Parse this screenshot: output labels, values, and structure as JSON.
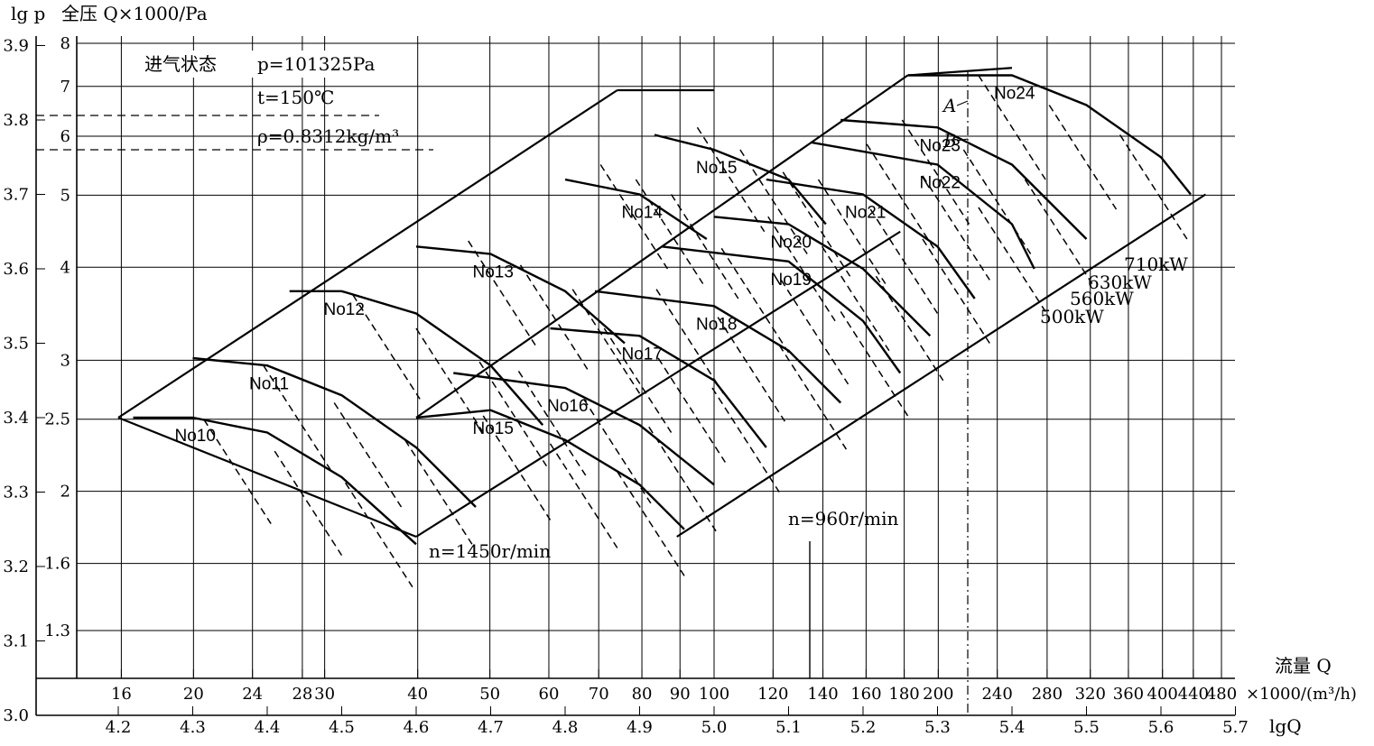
{
  "chart_data": {
    "type": "line",
    "title": "",
    "ylabel_log": "lg p",
    "ylabel": "全压 Q×1000/Pa",
    "xlabel": "流量 Q",
    "xunit": "×1000/(m³/h)",
    "xlabel_log": "lgQ",
    "lgQ_ticks": [
      "4.2",
      "4.3",
      "4.4",
      "4.5",
      "4.6",
      "4.7",
      "4.8",
      "4.9",
      "5.0",
      "5.1",
      "5.2",
      "5.3",
      "5.4",
      "5.5",
      "5.6",
      "5.7"
    ],
    "lgp_ticks": [
      "3.0",
      "3.1",
      "3.2",
      "3.3",
      "3.4",
      "3.5",
      "3.6",
      "3.7",
      "3.8",
      "3.9"
    ],
    "pressure_ticks": [
      "1.3",
      "1.6",
      "2",
      "2.5",
      "3",
      "4",
      "5",
      "6",
      "7",
      "8"
    ],
    "flow_ticks": [
      "16",
      "20",
      "24",
      "28",
      "30",
      "40",
      "50",
      "60",
      "70",
      "80",
      "90",
      "100",
      "120",
      "140",
      "160",
      "180",
      "200",
      "240",
      "280",
      "320",
      "360",
      "400",
      "440",
      "480"
    ],
    "inlet_conditions": {
      "heading": "进气状态",
      "pressure": "p=101325Pa",
      "temperature": "t=150℃",
      "density": "ρ=0.8312kg/m³"
    },
    "xlim_lgQ": [
      4.2,
      5.7
    ],
    "ylim_lgp": [
      3.0,
      3.9
    ],
    "grid": true,
    "speed_labels": [
      "n=1450r/min",
      "n=960r/min"
    ],
    "power_labels": [
      "710kW",
      "630kW",
      "560kW",
      "500kW"
    ],
    "point_labels": [
      "A",
      "B"
    ],
    "series": [
      {
        "name": "No10",
        "points": [
          [
            4.22,
            3.4
          ],
          [
            4.3,
            3.4
          ],
          [
            4.4,
            3.38
          ],
          [
            4.5,
            3.32
          ],
          [
            4.6,
            3.23
          ]
        ]
      },
      {
        "name": "No11",
        "points": [
          [
            4.3,
            3.48
          ],
          [
            4.4,
            3.47
          ],
          [
            4.5,
            3.43
          ],
          [
            4.6,
            3.36
          ],
          [
            4.68,
            3.28
          ]
        ]
      },
      {
        "name": "No12",
        "points": [
          [
            4.43,
            3.57
          ],
          [
            4.5,
            3.57
          ],
          [
            4.6,
            3.54
          ],
          [
            4.7,
            3.47
          ],
          [
            4.77,
            3.39
          ]
        ]
      },
      {
        "name": "No13",
        "points": [
          [
            4.6,
            3.63
          ],
          [
            4.7,
            3.62
          ],
          [
            4.8,
            3.57
          ],
          [
            4.88,
            3.5
          ]
        ]
      },
      {
        "name": "No14",
        "points": [
          [
            4.8,
            3.72
          ],
          [
            4.9,
            3.7
          ],
          [
            4.99,
            3.64
          ]
        ]
      },
      {
        "name": "No15",
        "points": [
          [
            4.92,
            3.78
          ],
          [
            5.0,
            3.76
          ],
          [
            5.1,
            3.72
          ],
          [
            5.15,
            3.66
          ]
        ]
      },
      {
        "name": "No15",
        "points": [
          [
            4.6,
            3.4
          ],
          [
            4.7,
            3.41
          ],
          [
            4.8,
            3.37
          ],
          [
            4.9,
            3.31
          ],
          [
            4.96,
            3.25
          ]
        ]
      },
      {
        "name": "No16",
        "points": [
          [
            4.65,
            3.46
          ],
          [
            4.8,
            3.44
          ],
          [
            4.9,
            3.39
          ],
          [
            5.0,
            3.31
          ]
        ]
      },
      {
        "name": "No17",
        "points": [
          [
            4.78,
            3.52
          ],
          [
            4.9,
            3.51
          ],
          [
            5.0,
            3.45
          ],
          [
            5.07,
            3.36
          ]
        ]
      },
      {
        "name": "No18",
        "points": [
          [
            4.84,
            3.57
          ],
          [
            5.0,
            3.55
          ],
          [
            5.1,
            3.49
          ],
          [
            5.17,
            3.42
          ]
        ]
      },
      {
        "name": "No19",
        "points": [
          [
            4.93,
            3.63
          ],
          [
            5.1,
            3.61
          ],
          [
            5.2,
            3.53
          ],
          [
            5.25,
            3.46
          ]
        ]
      },
      {
        "name": "No20",
        "points": [
          [
            5.0,
            3.67
          ],
          [
            5.1,
            3.66
          ],
          [
            5.2,
            3.6
          ],
          [
            5.29,
            3.51
          ]
        ]
      },
      {
        "name": "No21",
        "points": [
          [
            5.07,
            3.72
          ],
          [
            5.2,
            3.7
          ],
          [
            5.3,
            3.63
          ],
          [
            5.35,
            3.56
          ]
        ]
      },
      {
        "name": "No22",
        "points": [
          [
            5.13,
            3.77
          ],
          [
            5.3,
            3.74
          ],
          [
            5.4,
            3.66
          ],
          [
            5.43,
            3.6
          ]
        ]
      },
      {
        "name": "No23",
        "points": [
          [
            5.17,
            3.8
          ],
          [
            5.3,
            3.79
          ],
          [
            5.4,
            3.74
          ],
          [
            5.5,
            3.64
          ]
        ]
      },
      {
        "name": "No24",
        "points": [
          [
            5.26,
            3.86
          ],
          [
            5.4,
            3.86
          ],
          [
            5.5,
            3.82
          ],
          [
            5.6,
            3.75
          ],
          [
            5.64,
            3.7
          ]
        ]
      }
    ]
  }
}
